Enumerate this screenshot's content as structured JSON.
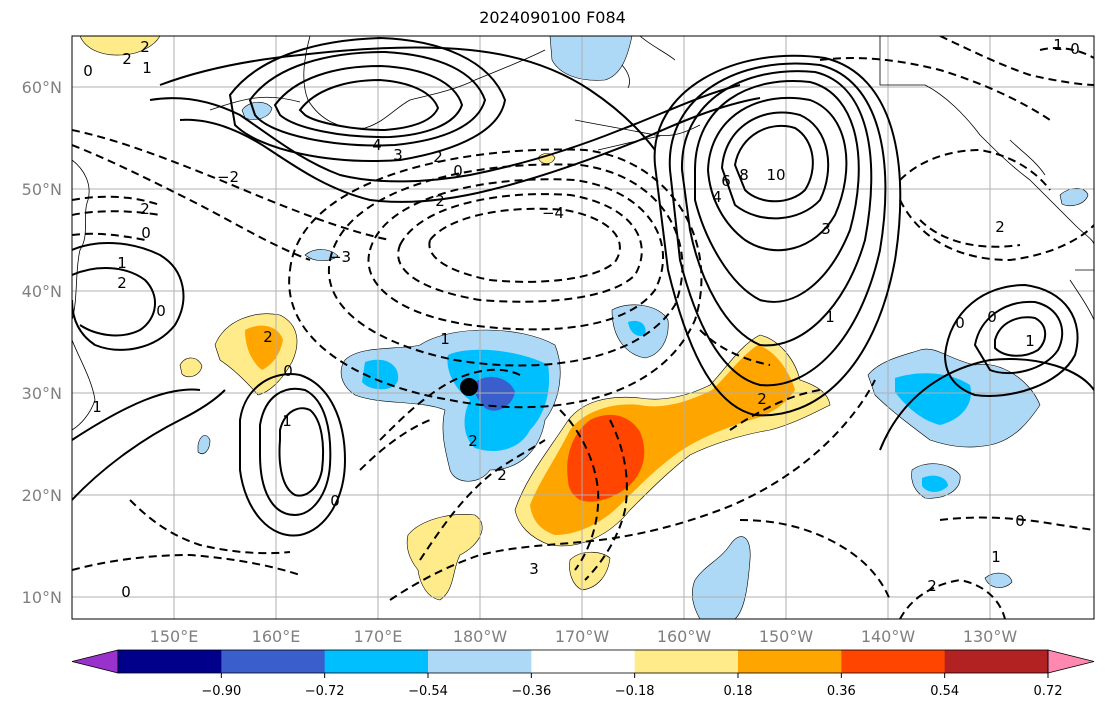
{
  "title": "2024090100 F084",
  "lat_labels": [
    "60°N",
    "50°N",
    "40°N",
    "30°N",
    "20°N",
    "10°N"
  ],
  "lon_labels": [
    "150°E",
    "160°E",
    "170°E",
    "180°W",
    "170°W",
    "160°W",
    "150°W",
    "140°W",
    "130°W"
  ],
  "colorbar": {
    "colors": [
      "#9932cc",
      "#00008b",
      "#3a5fcd",
      "#00bfff",
      "#add8f6",
      "#ffffff",
      "#ffeb8a",
      "#ffa500",
      "#ff4500",
      "#b22222",
      "#ff88b0"
    ],
    "tick_labels": [
      "−0.90",
      "−0.72",
      "−0.54",
      "−0.36",
      "−0.18",
      "0.18",
      "0.36",
      "0.54",
      "0.72",
      "0.90"
    ]
  },
  "contour_labels": [
    "2",
    "2",
    "1",
    "0",
    "4",
    "3",
    "2",
    "0",
    "2",
    "−4",
    "2",
    "−3",
    "1",
    "2",
    "0",
    "−2",
    "1",
    "10",
    "8",
    "6",
    "4",
    "3",
    "1",
    "0",
    "2",
    "0",
    "1",
    "1",
    "2",
    "2",
    "0",
    "2",
    "1",
    "0",
    "0",
    "0",
    "1",
    "3",
    "2",
    "2",
    "0",
    "0",
    "1"
  ],
  "marker": "storm-center"
}
